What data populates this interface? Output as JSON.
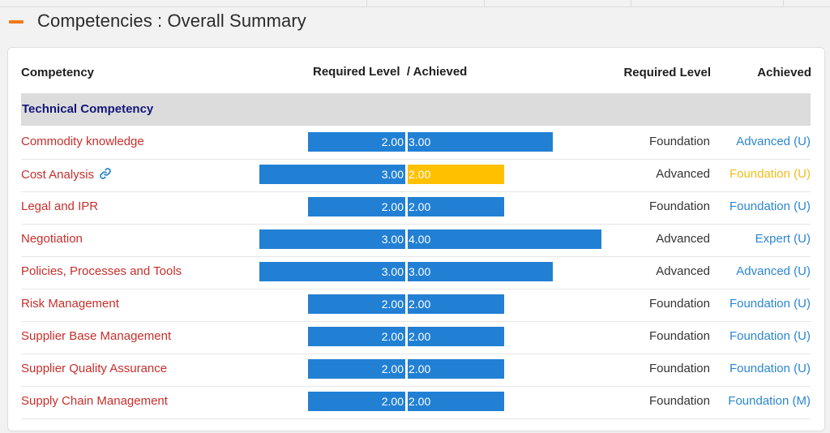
{
  "section": {
    "title": "Competencies : Overall Summary"
  },
  "table": {
    "headers": {
      "competency": "Competency",
      "bar": "Required Level  / Achieved",
      "required": "Required Level",
      "achieved": "Achieved"
    },
    "group_label": "Technical Competency",
    "rows": [
      {
        "name": "Commodity knowledge",
        "required_value": "2.00",
        "achieved_value": "3.00",
        "required_level": "Foundation",
        "achieved_level": "Advanced (U)",
        "achieved_status": "blue",
        "has_link_icon": false
      },
      {
        "name": "Cost Analysis",
        "required_value": "3.00",
        "achieved_value": "2.00",
        "required_level": "Advanced",
        "achieved_level": "Foundation (U)",
        "achieved_status": "yellow",
        "has_link_icon": true
      },
      {
        "name": "Legal and IPR",
        "required_value": "2.00",
        "achieved_value": "2.00",
        "required_level": "Foundation",
        "achieved_level": "Foundation (U)",
        "achieved_status": "blue",
        "has_link_icon": false
      },
      {
        "name": "Negotiation",
        "required_value": "3.00",
        "achieved_value": "4.00",
        "required_level": "Advanced",
        "achieved_level": "Expert (U)",
        "achieved_status": "blue",
        "has_link_icon": false
      },
      {
        "name": "Policies, Processes and Tools",
        "required_value": "3.00",
        "achieved_value": "3.00",
        "required_level": "Advanced",
        "achieved_level": "Advanced (U)",
        "achieved_status": "blue",
        "has_link_icon": false
      },
      {
        "name": "Risk Management",
        "required_value": "2.00",
        "achieved_value": "2.00",
        "required_level": "Foundation",
        "achieved_level": "Foundation (U)",
        "achieved_status": "blue",
        "has_link_icon": false
      },
      {
        "name": "Supplier Base Management",
        "required_value": "2.00",
        "achieved_value": "2.00",
        "required_level": "Foundation",
        "achieved_level": "Foundation (U)",
        "achieved_status": "blue",
        "has_link_icon": false
      },
      {
        "name": "Supplier Quality Assurance",
        "required_value": "2.00",
        "achieved_value": "2.00",
        "required_level": "Foundation",
        "achieved_level": "Foundation (U)",
        "achieved_status": "blue",
        "has_link_icon": false
      },
      {
        "name": "Supply Chain Management",
        "required_value": "2.00",
        "achieved_value": "2.00",
        "required_level": "Foundation",
        "achieved_level": "Foundation (M)",
        "achieved_status": "blue",
        "has_link_icon": false
      }
    ]
  },
  "colors": {
    "bar_blue": "#2280d4",
    "bar_yellow": "#ffc000",
    "competency_red": "#c62f2c",
    "achieved_blue": "#2b86cf",
    "achieved_yellow": "#f2bd19",
    "accent_orange": "#f07a1a"
  },
  "icons": {
    "collapse": "minus-icon",
    "link": "link-icon"
  }
}
